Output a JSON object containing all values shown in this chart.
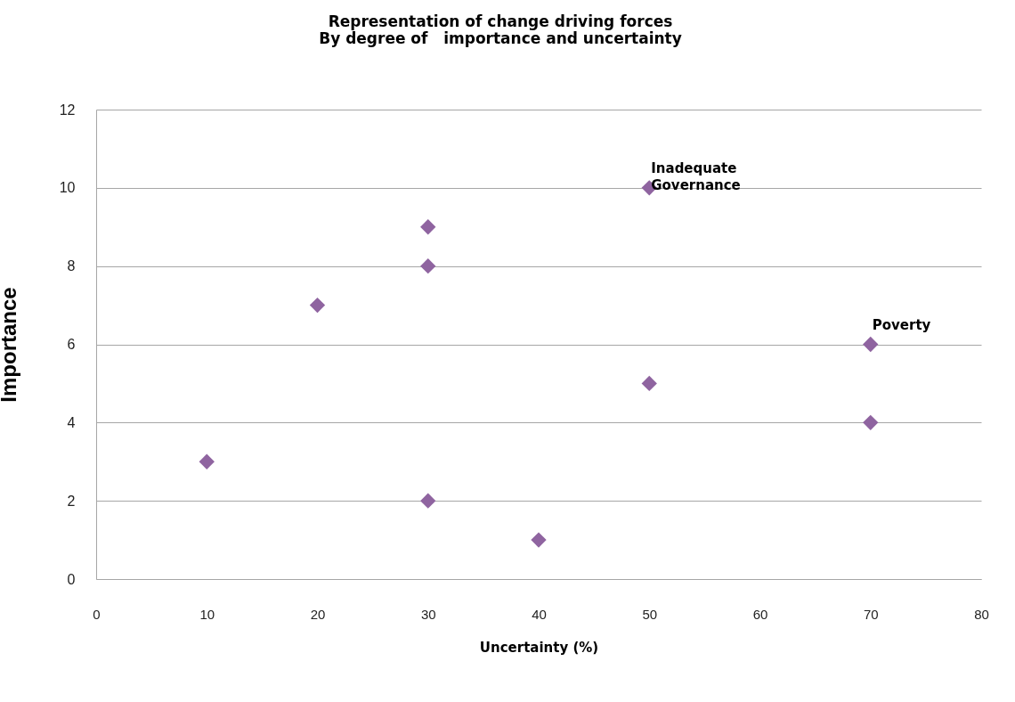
{
  "chart_data": {
    "type": "scatter",
    "title": "Representation of change driving forces",
    "subtitle": "By degree of   importance and uncertainty",
    "xlabel": "Uncertainty (%)",
    "ylabel": "Importance",
    "x": [
      10,
      20,
      30,
      30,
      30,
      40,
      50,
      50,
      70,
      70
    ],
    "values": [
      3,
      7,
      9,
      8,
      2,
      1,
      10,
      5,
      6,
      4
    ],
    "color": "#8f64a0",
    "marker": "diamond",
    "annotations": [
      {
        "text": "Inadequate Governance",
        "x": 50,
        "y": 10
      },
      {
        "text": "Poverty",
        "x": 70,
        "y": 6
      }
    ],
    "xlim": [
      0,
      80
    ],
    "xticks": [
      0,
      10,
      20,
      30,
      40,
      50,
      60,
      70,
      80
    ],
    "ylim": [
      0,
      12
    ],
    "yticks": [
      0,
      2,
      4,
      6,
      8,
      10,
      12
    ],
    "grid": "y"
  }
}
